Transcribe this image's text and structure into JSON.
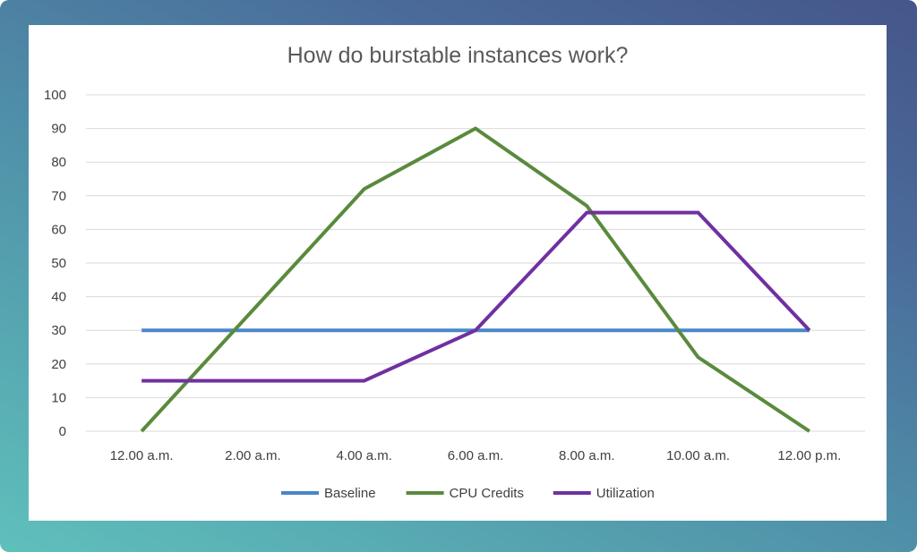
{
  "chart_data": {
    "type": "line",
    "title": "How do burstable instances work?",
    "xlabel": "",
    "ylabel": "",
    "categories": [
      "12.00 a.m.",
      "2.00 a.m.",
      "4.00 a.m.",
      "6.00 a.m.",
      "8.00 a.m.",
      "10.00 a.m.",
      "12.00 p.m."
    ],
    "ylim": [
      0,
      100
    ],
    "yticks": [
      0,
      10,
      20,
      30,
      40,
      50,
      60,
      70,
      80,
      90,
      100
    ],
    "grid": true,
    "legend_position": "bottom",
    "series": [
      {
        "name": "Baseline",
        "color": "#4a86c8",
        "values": [
          30,
          30,
          30,
          30,
          30,
          30,
          30
        ]
      },
      {
        "name": "CPU Credits",
        "color": "#5a8a3c",
        "values": [
          0,
          36,
          72,
          90,
          67,
          22,
          0
        ]
      },
      {
        "name": "Utilization",
        "color": "#7030a0",
        "values": [
          15,
          15,
          15,
          30,
          65,
          65,
          30
        ]
      }
    ]
  }
}
